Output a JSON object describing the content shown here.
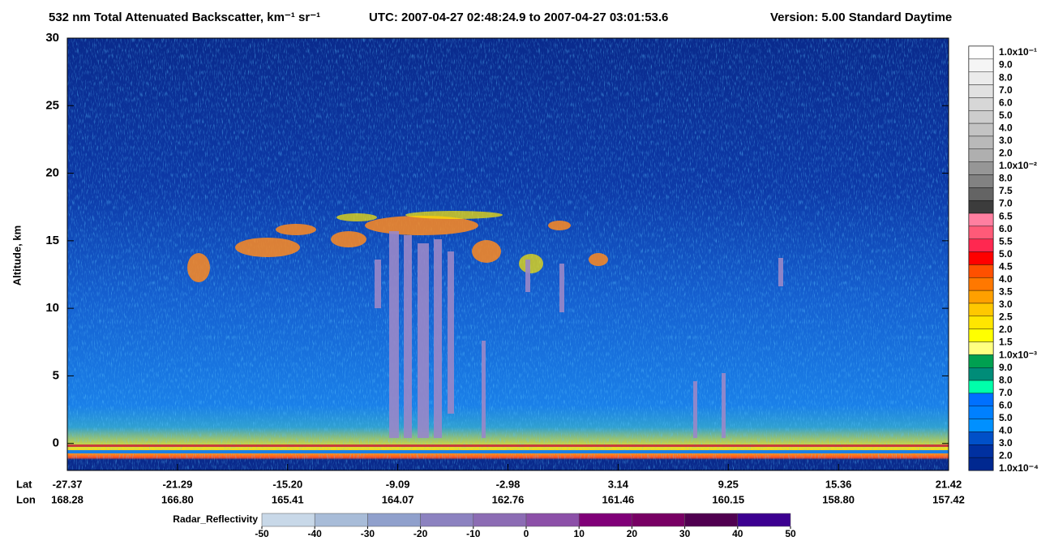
{
  "chart_data": {
    "type": "heatmap",
    "title": "532 nm Total Attenuated Backscatter, km⁻¹ sr⁻¹",
    "utc": "UTC:  2007-04-27 02:48:24.9  to  2007-04-27 03:01:53.6",
    "version": "Version: 5.00  Standard  Daytime",
    "ylabel": "Altitude, km",
    "ylim": [
      -2,
      30
    ],
    "yticks": [
      0,
      5,
      10,
      15,
      20,
      25,
      30
    ],
    "lat_label": "Lat",
    "lon_label": "Lon",
    "lat": [
      "-27.37",
      "-21.29",
      "-15.20",
      "-9.09",
      "-2.98",
      "3.14",
      "9.25",
      "15.36",
      "21.42"
    ],
    "lon": [
      "168.28",
      "166.80",
      "165.41",
      "164.07",
      "162.76",
      "161.46",
      "160.15",
      "158.80",
      "157.42"
    ],
    "colorbar": {
      "labels": [
        "1.0x10⁻¹",
        "9.0",
        "8.0",
        "7.0",
        "6.0",
        "5.0",
        "4.0",
        "3.0",
        "2.0",
        "1.0x10⁻²",
        "8.0",
        "7.5",
        "7.0",
        "6.5",
        "6.0",
        "5.5",
        "5.0",
        "4.5",
        "4.0",
        "3.5",
        "3.0",
        "2.5",
        "2.0",
        "1.5",
        "1.0x10⁻³",
        "9.0",
        "8.0",
        "7.0",
        "6.0",
        "5.0",
        "4.0",
        "3.0",
        "2.0",
        "1.0x10⁻⁴"
      ],
      "colors": [
        "#ffffff",
        "#f5f5f5",
        "#ebebeb",
        "#e1e1e1",
        "#d7d7d7",
        "#cdcdcd",
        "#c3c3c3",
        "#b9b9b9",
        "#afafaf",
        "#969696",
        "#828282",
        "#646464",
        "#3c3c3c",
        "#ff7fa0",
        "#ff5a78",
        "#ff2850",
        "#ff0000",
        "#ff5000",
        "#ff7800",
        "#ffa000",
        "#ffc800",
        "#ffe600",
        "#ffff00",
        "#ffff80",
        "#00a050",
        "#008c78",
        "#00ffaa",
        "#0070ff",
        "#0080ff",
        "#0090ff",
        "#0050c8",
        "#0030a0",
        "#002890"
      ]
    },
    "radar": {
      "title": "Radar_Reflectivity",
      "lim": [
        -50,
        50
      ],
      "ticks": [
        -50,
        -40,
        -30,
        -20,
        -10,
        0,
        10,
        20,
        30,
        40,
        50
      ],
      "colors": [
        "#c8d8e8",
        "#a8bcd8",
        "#90a0cc",
        "#8c82c0",
        "#8c6cb4",
        "#8c50a8",
        "#800078",
        "#780064",
        "#500050",
        "#3c0090"
      ]
    }
  }
}
